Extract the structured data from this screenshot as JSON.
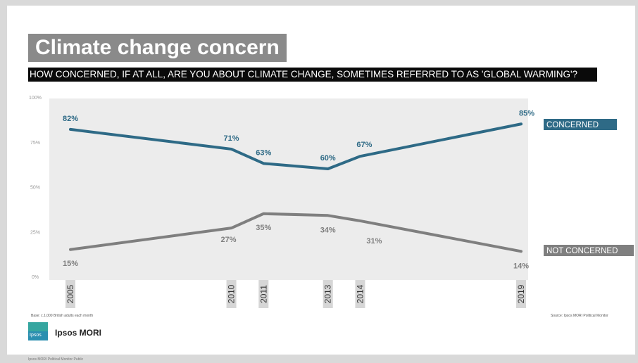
{
  "slide": {
    "title": "Climate change concern",
    "question": "HOW CONCERNED, IF AT ALL, ARE YOU ABOUT CLIMATE CHANGE, SOMETIMES REFERRED TO AS 'GLOBAL WARMING'?",
    "base_note": "Base: c.1,000 British adults each month",
    "source_note": "Source: Ipsos MORI Political Monitor",
    "logo_text": "Ipsos",
    "brand": "Ipsos MORI",
    "bottom_note": "Ipsos MORI Political Monitor Public"
  },
  "colors": {
    "concerned": "#2e6a86",
    "not_concerned": "#7f7f7f",
    "plot_bg": "#ececec",
    "year_box": "#d6d6d6"
  },
  "chart_data": {
    "type": "line",
    "title": "Climate change concern",
    "x": [
      "2005",
      "2010",
      "2011",
      "2013",
      "2014",
      "2019"
    ],
    "yticks": [
      "0%",
      "25%",
      "50%",
      "75%",
      "100%"
    ],
    "ylim": [
      0,
      100
    ],
    "grid": false,
    "legend": "right, labels at line ends",
    "series": [
      {
        "name": "CONCERNED",
        "values": [
          82,
          71,
          63,
          60,
          67,
          85
        ],
        "labels": [
          "82%",
          "71%",
          "63%",
          "60%",
          "67%",
          "85%"
        ]
      },
      {
        "name": "NOT CONCERNED",
        "values": [
          15,
          27,
          35,
          34,
          31,
          14
        ],
        "labels": [
          "15%",
          "27%",
          "35%",
          "34%",
          "31%",
          "14%"
        ]
      }
    ]
  }
}
